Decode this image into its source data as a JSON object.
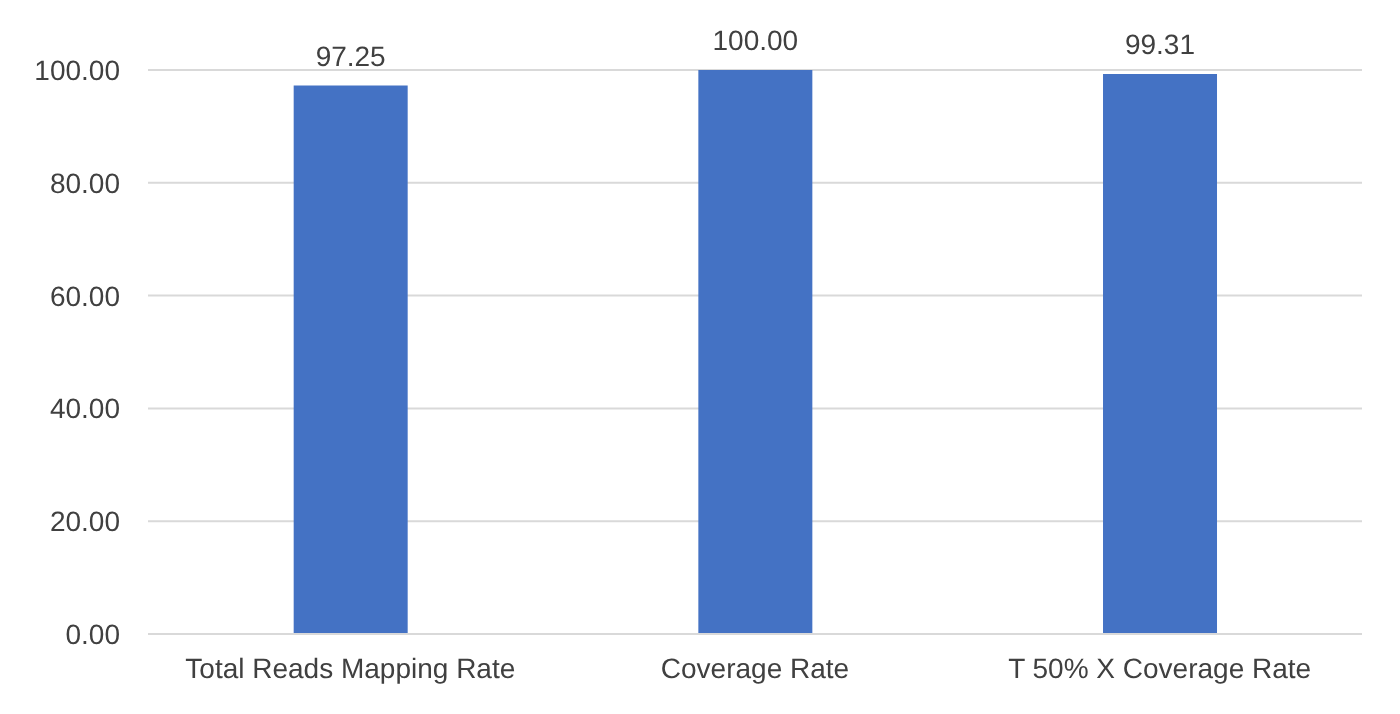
{
  "chart_data": {
    "type": "bar",
    "categories": [
      "Total Reads Mapping Rate",
      "Coverage Rate",
      "T 50% X Coverage Rate"
    ],
    "values": [
      97.25,
      100.0,
      99.31
    ],
    "value_labels": [
      "97.25",
      "100.00",
      "99.31"
    ],
    "color": "#4472c4",
    "ylim": [
      0,
      100
    ],
    "yticks": [
      {
        "value": 0,
        "label": "0.00"
      },
      {
        "value": 20,
        "label": "20.00"
      },
      {
        "value": 40,
        "label": "40.00"
      },
      {
        "value": 60,
        "label": "60.00"
      },
      {
        "value": 80,
        "label": "80.00"
      },
      {
        "value": 100,
        "label": "100.00"
      }
    ],
    "grid": "y",
    "legend": false
  }
}
